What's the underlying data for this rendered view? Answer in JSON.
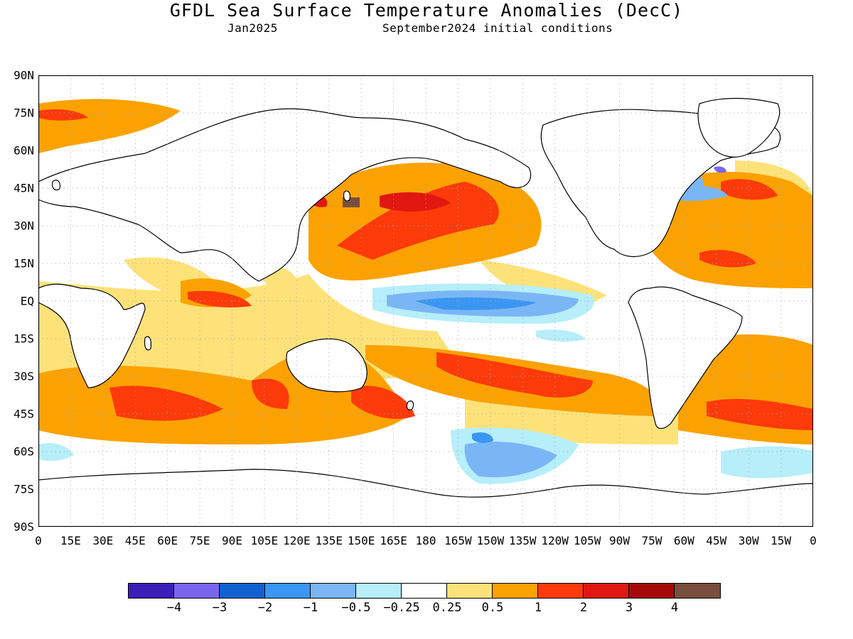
{
  "title": "GFDL Sea Surface Temperature Anomalies (DecC)",
  "subtitle_left": "Jan2025",
  "subtitle_right": "September2024 initial conditions",
  "y_ticks": [
    "90N",
    "75N",
    "60N",
    "45N",
    "30N",
    "15N",
    "EQ",
    "15S",
    "30S",
    "45S",
    "60S",
    "75S",
    "90S"
  ],
  "x_ticks": [
    "0",
    "15E",
    "30E",
    "45E",
    "60E",
    "75E",
    "90E",
    "105E",
    "120E",
    "135E",
    "150E",
    "165E",
    "180",
    "165W",
    "150W",
    "135W",
    "120W",
    "105W",
    "90W",
    "75W",
    "60W",
    "45W",
    "30W",
    "15W",
    "0"
  ],
  "colorbar": {
    "colors": [
      "#3a1fb8",
      "#7a66ee",
      "#1261d0",
      "#3a96f2",
      "#7ab6f6",
      "#b6eefa",
      "#ffffff",
      "#fde27a",
      "#fba200",
      "#fd3a0a",
      "#e01810",
      "#a60a0a",
      "#7a4e3e"
    ],
    "labels": [
      "−4",
      "−3",
      "−2",
      "−1",
      "−0.5",
      "−0.25",
      "0.25",
      "0.5",
      "1",
      "2",
      "3",
      "4"
    ]
  },
  "legend_map": {
    "ocean_color": "#ffffff",
    "coastline_color": "#000000",
    "grid": "dotted"
  }
}
